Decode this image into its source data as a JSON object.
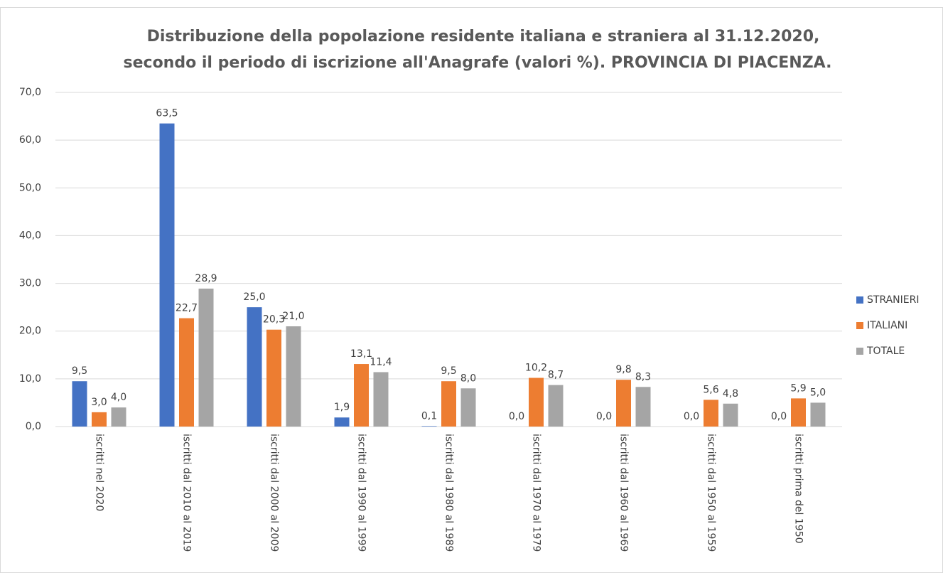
{
  "chart_data": {
    "type": "bar",
    "title": [
      "Distribuzione della popolazione residente italiana e straniera al 31.12.2020,",
      "secondo il periodo di iscrizione all'Anagrafe (valori %). PROVINCIA DI PIACENZA."
    ],
    "categories": [
      "iscritti nel 2020",
      "iscritti dal 2010 al 2019",
      "iscritti dal 2000 al 2009",
      "iscritti dal 1990 al 1999",
      "iscritti dal 1980 al 1989",
      "iscritti dal 1970 al 1979",
      "iscritti dal 1960 al 1969",
      "iscritti dal 1950 al 1959",
      "iscritti prima del 1950"
    ],
    "series": [
      {
        "name": "STRANIERI",
        "color": "#4472c4",
        "values": [
          9.5,
          63.5,
          25.0,
          1.9,
          0.1,
          0.0,
          0.0,
          0.0,
          0.0
        ],
        "value_labels": [
          "9,5",
          "63,5",
          "25,0",
          "1,9",
          "0,1",
          "0,0",
          "0,0",
          "0,0",
          "0,0"
        ]
      },
      {
        "name": "ITALIANI",
        "color": "#ed7d31",
        "values": [
          3.0,
          22.7,
          20.3,
          13.1,
          9.5,
          10.2,
          9.8,
          5.6,
          5.9
        ],
        "value_labels": [
          "3,0",
          "22,7",
          "20,3",
          "13,1",
          "9,5",
          "10,2",
          "9,8",
          "5,6",
          "5,9"
        ]
      },
      {
        "name": "TOTALE",
        "color": "#a5a5a5",
        "values": [
          4.0,
          28.9,
          21.0,
          11.4,
          8.0,
          8.7,
          8.3,
          4.8,
          5.0
        ],
        "value_labels": [
          "4,0",
          "28,9",
          "21,0",
          "11,4",
          "8,0",
          "8,7",
          "8,3",
          "4,8",
          "5,0"
        ]
      }
    ],
    "ylim": [
      0,
      70
    ],
    "yticks": [
      {
        "value": 0,
        "label": "0,0"
      },
      {
        "value": 10,
        "label": "10,0"
      },
      {
        "value": 20,
        "label": "20,0"
      },
      {
        "value": 30,
        "label": "30,0"
      },
      {
        "value": 40,
        "label": "40,0"
      },
      {
        "value": 50,
        "label": "50,0"
      },
      {
        "value": 60,
        "label": "60,0"
      },
      {
        "value": 70,
        "label": "70,0"
      }
    ],
    "grid": true,
    "legend": "right"
  }
}
